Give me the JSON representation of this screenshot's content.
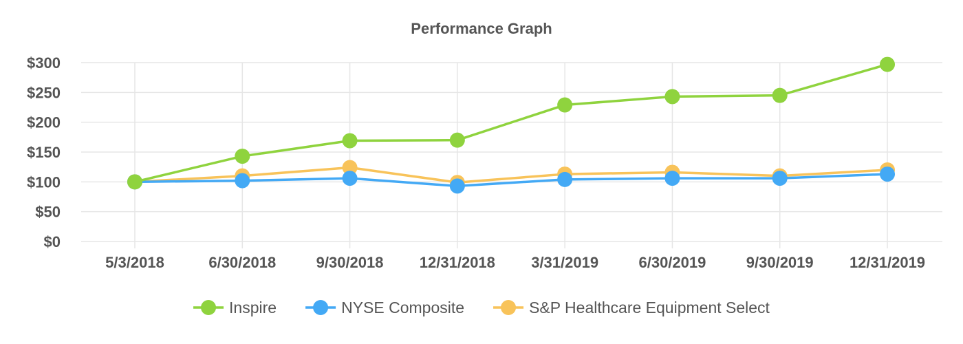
{
  "chart_data": {
    "type": "line",
    "title": "Performance Graph",
    "xlabel": "",
    "ylabel": "",
    "categories": [
      "5/3/2018",
      "6/30/2018",
      "9/30/2018",
      "12/31/2018",
      "3/31/2019",
      "6/30/2019",
      "9/30/2019",
      "12/31/2019"
    ],
    "ylim": [
      0,
      300
    ],
    "yticks": [
      "$0",
      "$50",
      "$100",
      "$150",
      "$200",
      "$250",
      "$300"
    ],
    "grid": true,
    "legend_position": "bottom",
    "series": [
      {
        "name": "Inspire",
        "color": "#8fd33e",
        "values": [
          100,
          143,
          169,
          170,
          229,
          243,
          245,
          297
        ]
      },
      {
        "name": "NYSE Composite",
        "color": "#43a9f5",
        "values": [
          100,
          102,
          106,
          93,
          104,
          106,
          106,
          113
        ]
      },
      {
        "name": "S&P Healthcare Equipment Select",
        "color": "#f8c35a",
        "values": [
          100,
          110,
          124,
          99,
          113,
          116,
          110,
          120
        ]
      }
    ]
  }
}
